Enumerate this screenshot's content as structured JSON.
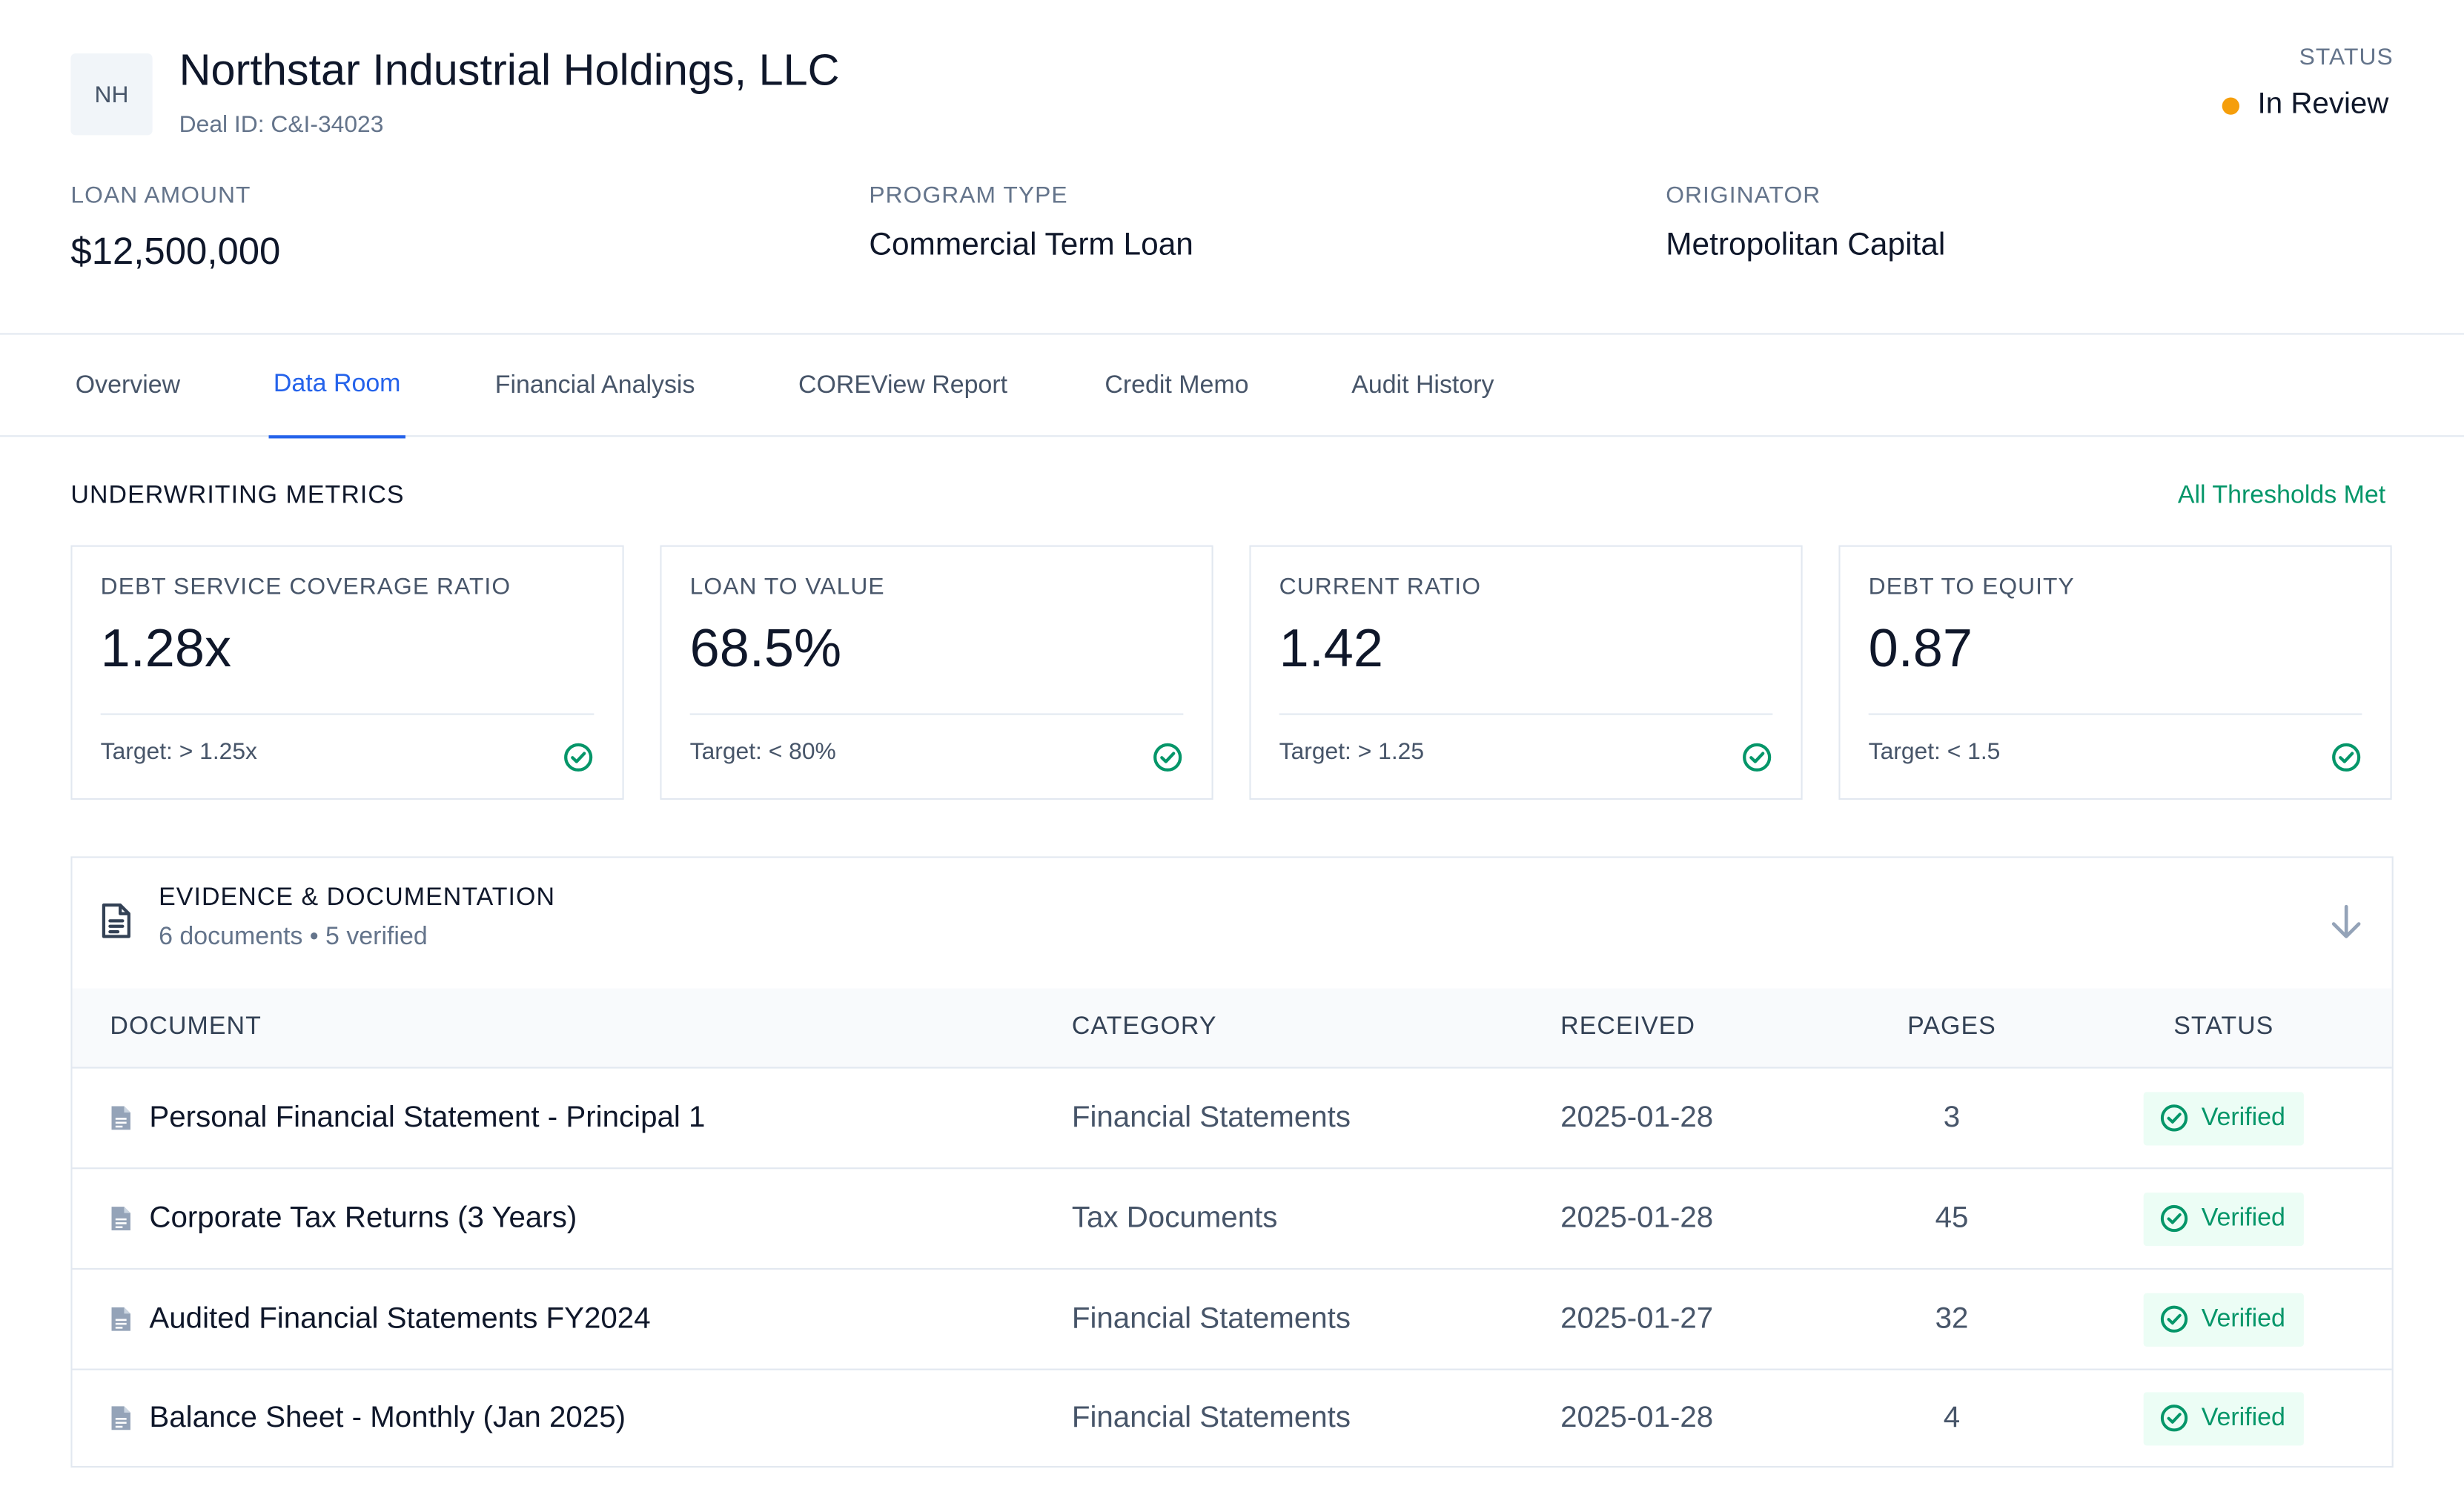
{
  "header": {
    "avatar_initials": "NH",
    "company_name": "Northstar Industrial Holdings, LLC",
    "deal_id": "Deal ID: C&I-34023",
    "status_label": "STATUS",
    "status_value": "In Review",
    "status_color": "#f59e0b"
  },
  "info": {
    "loan_amount_label": "LOAN AMOUNT",
    "loan_amount_value": "$12,500,000",
    "program_type_label": "PROGRAM TYPE",
    "program_type_value": "Commercial Term Loan",
    "originator_label": "ORIGINATOR",
    "originator_value": "Metropolitan Capital"
  },
  "tabs": [
    {
      "label": "Overview",
      "active": false
    },
    {
      "label": "Data Room",
      "active": true
    },
    {
      "label": "Financial Analysis",
      "active": false
    },
    {
      "label": "COREView Report",
      "active": false
    },
    {
      "label": "Credit Memo",
      "active": false
    },
    {
      "label": "Audit History",
      "active": false
    }
  ],
  "metrics_section": {
    "title": "UNDERWRITING METRICS",
    "thresholds_status": "All Thresholds Met",
    "cards": [
      {
        "label": "DEBT SERVICE COVERAGE RATIO",
        "value": "1.28x",
        "target": "Target: > 1.25x",
        "icon": "check-circle-icon"
      },
      {
        "label": "LOAN TO VALUE",
        "value": "68.5%",
        "target": "Target: < 80%",
        "icon": "check-circle-icon"
      },
      {
        "label": "CURRENT RATIO",
        "value": "1.42",
        "target": "Target: > 1.25",
        "icon": "check-circle-icon"
      },
      {
        "label": "DEBT TO EQUITY",
        "value": "0.87",
        "target": "Target: < 1.5",
        "icon": "check-circle-icon"
      }
    ]
  },
  "evidence": {
    "title": "EVIDENCE & DOCUMENTATION",
    "summary": "6 documents • 5 verified",
    "columns": [
      "DOCUMENT",
      "CATEGORY",
      "RECEIVED",
      "PAGES",
      "STATUS"
    ],
    "rows": [
      {
        "document": "Personal Financial Statement - Principal 1",
        "category": "Financial Statements",
        "received": "2025-01-28",
        "pages": "3",
        "status": "Verified"
      },
      {
        "document": "Corporate Tax Returns (3 Years)",
        "category": "Tax Documents",
        "received": "2025-01-28",
        "pages": "45",
        "status": "Verified"
      },
      {
        "document": "Audited Financial Statements FY2024",
        "category": "Financial Statements",
        "received": "2025-01-27",
        "pages": "32",
        "status": "Verified"
      },
      {
        "document": "Balance Sheet - Monthly (Jan 2025)",
        "category": "Financial Statements",
        "received": "2025-01-28",
        "pages": "4",
        "status": "Verified"
      }
    ]
  },
  "colors": {
    "accent": "#2563eb",
    "success": "#059669",
    "warning": "#f59e0b"
  }
}
